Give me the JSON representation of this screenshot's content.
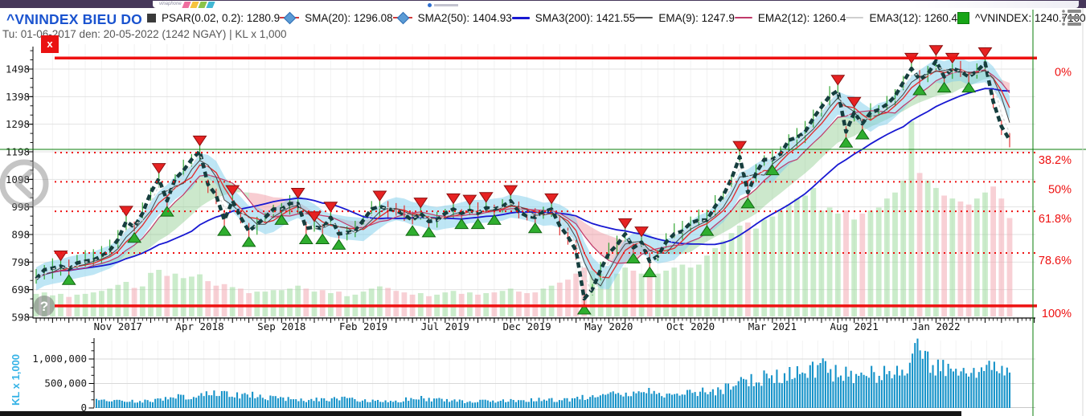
{
  "banner": {
    "logo_text": "vinaphone"
  },
  "header": {
    "title": "^VNINDEX BIEU DO NGAY",
    "subtitle": "Tu: 01-06-2017 den: 20-05-2022 (1242 NGAY) | KL x 1,000",
    "close_label": "x"
  },
  "legend": {
    "items": [
      {
        "id": "psar",
        "label": "PSAR(0.02, 0.2): 1280.9",
        "marker": "square",
        "color": "#3a3a3a"
      },
      {
        "id": "sma20",
        "label": "SMA(20): 1296.08",
        "marker": "diamond",
        "color": "#5b9bd5"
      },
      {
        "id": "sma2-50",
        "label": "SMA2(50): 1404.93",
        "marker": "diamond",
        "color": "#5b9bd5"
      },
      {
        "id": "sma3-200",
        "label": "SMA3(200): 1421.55",
        "marker": "line",
        "color": "#1818d2",
        "thickness": 3
      },
      {
        "id": "ema9",
        "label": "EMA(9): 1247.9",
        "marker": "line",
        "color": "#555555",
        "thickness": 2
      },
      {
        "id": "ema2-12",
        "label": "EMA2(12): 1260.4",
        "marker": "line",
        "color": "#c03a6a",
        "thickness": 2.5
      },
      {
        "id": "ema3-12",
        "label": "EMA3(12): 1260.4",
        "marker": "line",
        "color": "#cfcfcf",
        "thickness": 2.5
      },
      {
        "id": "vnindex",
        "label": "^VNINDEX: 1240.7100",
        "marker": "square",
        "color": "#17a517"
      }
    ]
  },
  "chart_data": {
    "type": "line",
    "title": "^VNINDEX BIEU DO NGAY",
    "date_range": {
      "from": "01-06-2017",
      "to": "20-05-2022",
      "days": 1242
    },
    "last_price": 1240.71,
    "indicators": {
      "psar": 1280.9,
      "sma20": 1296.08,
      "sma2_50": 1404.93,
      "sma3_200": 1421.55,
      "ema9": 1247.9,
      "ema2_12": 1260.4,
      "ema3_12": 1260.4
    },
    "y_axis": {
      "min": 598,
      "max": 1498,
      "tick_step": 100,
      "labels": [
        "1498",
        "1398",
        "1298",
        "1198",
        "1098",
        "998",
        "898",
        "798",
        "698",
        "598"
      ]
    },
    "x_tick_labels": [
      {
        "label": "Nov 2017",
        "month": 5
      },
      {
        "label": "Apr 2018",
        "month": 10
      },
      {
        "label": "Sep 2018",
        "month": 15
      },
      {
        "label": "Feb 2019",
        "month": 20
      },
      {
        "label": "Jul 2019",
        "month": 25
      },
      {
        "label": "Dec 2019",
        "month": 30
      },
      {
        "label": "May 2020",
        "month": 35
      },
      {
        "label": "Oct 2020",
        "month": 40
      },
      {
        "label": "Mar 2021",
        "month": 45
      },
      {
        "label": "Aug 2021",
        "month": 50
      },
      {
        "label": "Jan 2022",
        "month": 55
      }
    ],
    "fibonacci": {
      "high": 1538,
      "low": 639,
      "levels": [
        {
          "pct": "0%",
          "price": 1538,
          "style": "solid"
        },
        {
          "pct": "38.2%",
          "price": 1195,
          "style": "dotted"
        },
        {
          "pct": "50%",
          "price": 1089,
          "style": "dotted"
        },
        {
          "pct": "61.8%",
          "price": 982,
          "style": "dotted"
        },
        {
          "pct": "78.6%",
          "price": 831,
          "style": "dotted"
        },
        {
          "pct": "100%",
          "price": 639,
          "style": "solid"
        }
      ]
    },
    "crosshair": {
      "price": 1207
    },
    "price_series": {
      "sampling": "semi-monthly Jun-2017 to May-2022",
      "values": [
        737,
        770,
        776,
        783,
        772,
        795,
        801,
        806,
        820,
        840,
        880,
        945,
        925,
        975,
        1050,
        1100,
        1020,
        1100,
        1130,
        1170,
        1200,
        1080,
        1040,
        950,
        1020,
        960,
        910,
        935,
        960,
        990,
        990,
        1010,
        1010,
        920,
        925,
        920,
        960,
        900,
        905,
        910,
        950,
        990,
        1000,
        990,
        985,
        970,
        950,
        975,
        945,
        950,
        975,
        990,
        975,
        985,
        975,
        995,
        990,
        1000,
        1020,
        980,
        965,
        960,
        980,
        990,
        930,
        890,
        840,
        665,
        700,
        770,
        830,
        860,
        900,
        850,
        870,
        800,
        820,
        870,
        900,
        910,
        940,
        950,
        950,
        1000,
        1040,
        1100,
        1180,
        1050,
        1120,
        1170,
        1170,
        1190,
        1240,
        1250,
        1270,
        1320,
        1360,
        1400,
        1420,
        1270,
        1340,
        1300,
        1340,
        1350,
        1370,
        1400,
        1450,
        1500,
        1460,
        1480,
        1528,
        1470,
        1500,
        1490,
        1470,
        1490,
        1520,
        1380,
        1290,
        1241
      ]
    },
    "volume_panel": {
      "unit_label": "KL x 1,000",
      "y_tick_labels": [
        "1,000,000",
        "500,000",
        "0"
      ],
      "values": [
        150,
        160,
        140,
        150,
        130,
        145,
        150,
        160,
        170,
        185,
        210,
        230,
        190,
        200,
        290,
        310,
        270,
        285,
        255,
        265,
        280,
        235,
        205,
        215,
        195,
        185,
        155,
        165,
        165,
        175,
        175,
        185,
        205,
        185,
        165,
        175,
        155,
        165,
        135,
        145,
        165,
        185,
        200,
        190,
        170,
        160,
        145,
        155,
        135,
        145,
        160,
        170,
        150,
        160,
        145,
        155,
        160,
        170,
        185,
        165,
        155,
        160,
        185,
        205,
        225,
        245,
        285,
        325,
        305,
        285,
        265,
        285,
        325,
        305,
        285,
        265,
        285,
        305,
        325,
        345,
        325,
        345,
        405,
        455,
        505,
        555,
        605,
        625,
        585,
        645,
        665,
        705,
        745,
        785,
        805,
        855,
        705,
        725,
        685,
        705,
        645,
        685,
        705,
        725,
        785,
        825,
        905,
        1300,
        955,
        905,
        855,
        805,
        785,
        765,
        745,
        785,
        825,
        865,
        785,
        655
      ]
    },
    "colors": {
      "volume_bar": "#1793c9",
      "volume_label": "#36b3e6",
      "fib": "#ee1111",
      "crosshair": "#087c08",
      "price_line": "#163e3e",
      "sma200": "#1818d2",
      "sma_fast": "#e23030",
      "cloud_up": "rgba(120,195,120,0.38)",
      "cloud_down": "rgba(238,130,142,0.4)",
      "band": "rgba(125,205,235,0.5)",
      "overlay_up": "rgba(140,212,140,0.45)",
      "overlay_down": "rgba(242,162,172,0.5)",
      "signal_up": "#2fae2f",
      "signal_down": "#e62222"
    }
  }
}
